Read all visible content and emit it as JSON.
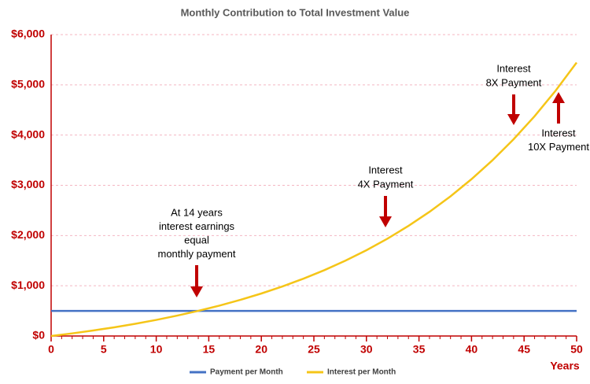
{
  "chart_data": {
    "type": "line",
    "title": "Monthly Contribution to Total Investment Value",
    "x_label": "Years",
    "x": [
      0,
      2,
      4,
      6,
      8,
      10,
      12,
      14,
      16,
      18,
      20,
      22,
      24,
      26,
      28,
      30,
      32,
      34,
      36,
      38,
      40,
      42,
      44,
      46,
      48,
      50
    ],
    "series": [
      {
        "name": "Payment per Month",
        "color": "#4472c4",
        "values": [
          500,
          500,
          500,
          500,
          500,
          500,
          500,
          500,
          500,
          500,
          500,
          500,
          500,
          500,
          500,
          500,
          500,
          500,
          500,
          500,
          500,
          500,
          500,
          500,
          500,
          500
        ]
      },
      {
        "name": "Interest per Month",
        "color": "#f5c518",
        "values": [
          0,
          52,
          110,
          173,
          243,
          320,
          406,
          500,
          604,
          719,
          846,
          986,
          1141,
          1311,
          1500,
          1708,
          1938,
          2192,
          2472,
          2781,
          3123,
          3500,
          3916,
          4376,
          4884,
          5444
        ]
      }
    ],
    "xlim": [
      0,
      50
    ],
    "xticks": [
      0,
      5,
      10,
      15,
      20,
      25,
      30,
      35,
      40,
      45,
      50
    ],
    "ylim": [
      0,
      6000
    ],
    "yticks": [
      {
        "value": 0,
        "label": "$0"
      },
      {
        "value": 1000,
        "label": "$1,000"
      },
      {
        "value": 2000,
        "label": "$2,000"
      },
      {
        "value": 3000,
        "label": "$3,000"
      },
      {
        "value": 4000,
        "label": "$4,000"
      },
      {
        "value": 5000,
        "label": "$5,000"
      },
      {
        "value": 6000,
        "label": "$6,000"
      }
    ],
    "grid": true,
    "legend": "bottom",
    "annotations": [
      {
        "lines": [
          "At 14 years",
          "interest earnings",
          "equal",
          "monthly payment"
        ]
      },
      {
        "lines": [
          "Interest",
          "4X Payment"
        ]
      },
      {
        "lines": [
          "Interest",
          "8X Payment"
        ]
      },
      {
        "lines": [
          "Interest",
          "10X Payment"
        ]
      }
    ]
  }
}
